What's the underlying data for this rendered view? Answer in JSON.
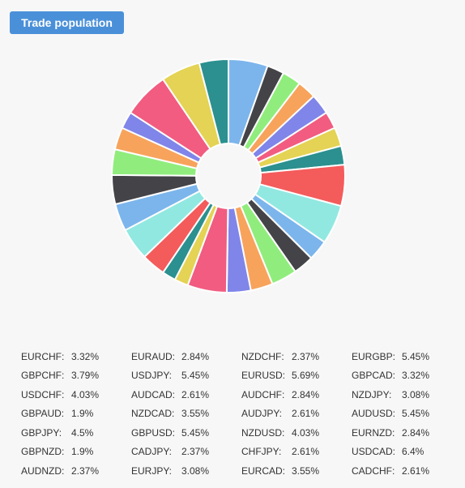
{
  "header": {
    "button_label": "Trade population"
  },
  "colors": [
    "#7cb5ec",
    "#434348",
    "#90ed7d",
    "#f7a35c",
    "#8085e9",
    "#f15c80",
    "#e4d354",
    "#2b908f",
    "#f45b5b",
    "#91e8e1"
  ],
  "chart_data": {
    "type": "pie",
    "donut": true,
    "slices": [
      {
        "label": "AUDUSD",
        "value": 5.45
      },
      {
        "label": "AUDNZD",
        "value": 2.37
      },
      {
        "label": "AUDCAD",
        "value": 2.61
      },
      {
        "label": "AUDJPY",
        "value": 2.61
      },
      {
        "label": "AUDCHF",
        "value": 2.84
      },
      {
        "label": "CADJPY",
        "value": 2.37
      },
      {
        "label": "CADCHF",
        "value": 2.61
      },
      {
        "label": "CHFJPY",
        "value": 2.61
      },
      {
        "label": "EURUSD",
        "value": 5.69
      },
      {
        "label": "EURGBP",
        "value": 5.45
      },
      {
        "label": "EURAUD",
        "value": 2.84
      },
      {
        "label": "EURNZD",
        "value": 2.84
      },
      {
        "label": "EURCAD",
        "value": 3.55
      },
      {
        "label": "EURJPY",
        "value": 3.08
      },
      {
        "label": "EURCHF",
        "value": 3.32
      },
      {
        "label": "GBPUSD",
        "value": 5.45
      },
      {
        "label": "GBPAUD",
        "value": 1.9
      },
      {
        "label": "GBPNZD",
        "value": 1.9
      },
      {
        "label": "GBPCAD",
        "value": 3.32
      },
      {
        "label": "GBPJPY",
        "value": 4.5
      },
      {
        "label": "GBPCHF",
        "value": 3.79
      },
      {
        "label": "NZDUSD",
        "value": 4.03
      },
      {
        "label": "NZDCAD",
        "value": 3.55
      },
      {
        "label": "NZDJPY",
        "value": 3.08
      },
      {
        "label": "NZDCHF",
        "value": 2.37
      },
      {
        "label": "USDCAD",
        "value": 6.4
      },
      {
        "label": "USDJPY",
        "value": 5.45
      },
      {
        "label": "USDCHF",
        "value": 4.03
      }
    ],
    "legend": [
      {
        "pair": "EURCHF:",
        "pct": "3.32%"
      },
      {
        "pair": "EURAUD:",
        "pct": "2.84%"
      },
      {
        "pair": "NZDCHF:",
        "pct": "2.37%"
      },
      {
        "pair": "EURGBP:",
        "pct": "5.45%"
      },
      {
        "pair": "GBPCHF:",
        "pct": "3.79%"
      },
      {
        "pair": "USDJPY:",
        "pct": "5.45%"
      },
      {
        "pair": "EURUSD:",
        "pct": "5.69%"
      },
      {
        "pair": "GBPCAD:",
        "pct": "3.32%"
      },
      {
        "pair": "USDCHF:",
        "pct": "4.03%"
      },
      {
        "pair": "AUDCAD:",
        "pct": "2.61%"
      },
      {
        "pair": "AUDCHF:",
        "pct": "2.84%"
      },
      {
        "pair": "NZDJPY:",
        "pct": "3.08%"
      },
      {
        "pair": "GBPAUD:",
        "pct": "1.9%"
      },
      {
        "pair": "NZDCAD:",
        "pct": "3.55%"
      },
      {
        "pair": "AUDJPY:",
        "pct": "2.61%"
      },
      {
        "pair": "AUDUSD:",
        "pct": "5.45%"
      },
      {
        "pair": "GBPJPY:",
        "pct": "4.5%"
      },
      {
        "pair": "GBPUSD:",
        "pct": "5.45%"
      },
      {
        "pair": "NZDUSD:",
        "pct": "4.03%"
      },
      {
        "pair": "EURNZD:",
        "pct": "2.84%"
      },
      {
        "pair": "GBPNZD:",
        "pct": "1.9%"
      },
      {
        "pair": "CADJPY:",
        "pct": "2.37%"
      },
      {
        "pair": "CHFJPY:",
        "pct": "2.61%"
      },
      {
        "pair": "USDCAD:",
        "pct": "6.4%"
      },
      {
        "pair": "AUDNZD:",
        "pct": "2.37%"
      },
      {
        "pair": "EURJPY:",
        "pct": "3.08%"
      },
      {
        "pair": "EURCAD:",
        "pct": "3.55%"
      },
      {
        "pair": "CADCHF:",
        "pct": "2.61%"
      }
    ]
  }
}
